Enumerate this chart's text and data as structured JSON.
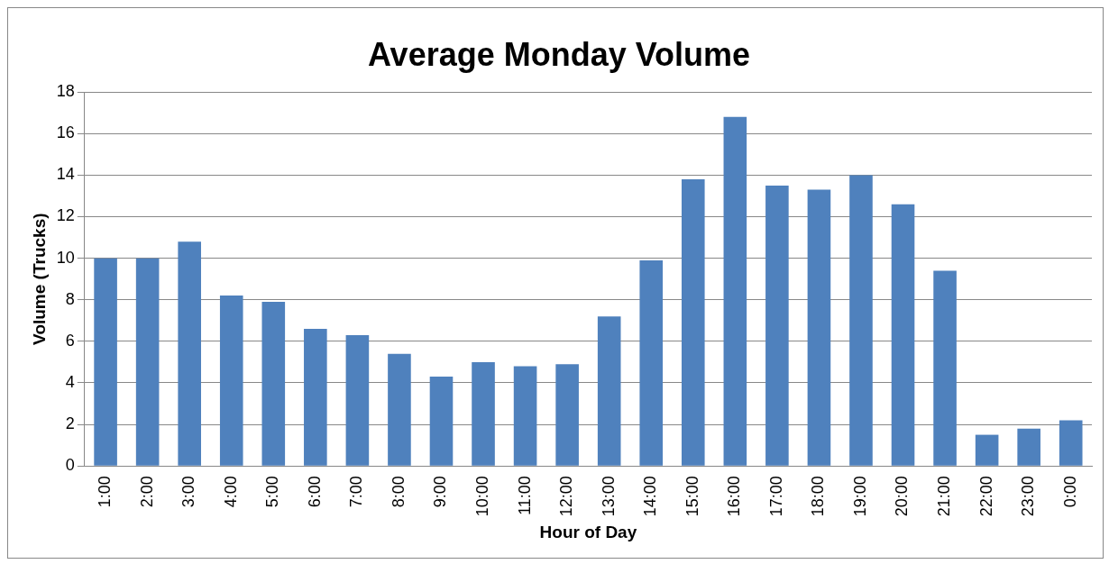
{
  "chart_data": {
    "type": "bar",
    "title": "Average Monday Volume",
    "xlabel": "Hour of Day",
    "ylabel": "Volume (Trucks)",
    "categories": [
      "1:00",
      "2:00",
      "3:00",
      "4:00",
      "5:00",
      "6:00",
      "7:00",
      "8:00",
      "9:00",
      "10:00",
      "11:00",
      "12:00",
      "13:00",
      "14:00",
      "15:00",
      "16:00",
      "17:00",
      "18:00",
      "19:00",
      "20:00",
      "21:00",
      "22:00",
      "23:00",
      "0:00"
    ],
    "values": [
      10,
      10,
      10.8,
      8.2,
      7.9,
      6.6,
      6.3,
      5.4,
      4.3,
      5,
      4.8,
      4.9,
      7.2,
      9.9,
      13.8,
      16.8,
      13.5,
      13.3,
      14,
      12.6,
      9.4,
      1.5,
      1.8,
      2.2
    ],
    "color": "#4f81bd",
    "ylim": [
      0,
      18
    ],
    "yticks": [
      0,
      2,
      4,
      6,
      8,
      10,
      12,
      14,
      16,
      18
    ],
    "grid": "y",
    "legend": false
  }
}
